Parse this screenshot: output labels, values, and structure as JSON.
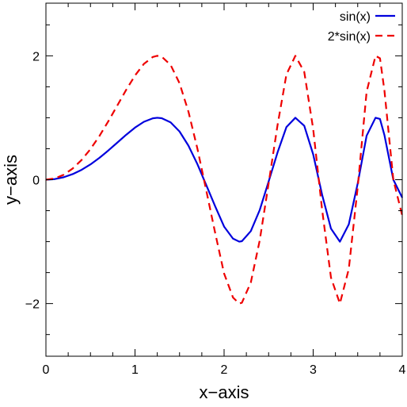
{
  "chart_data": {
    "type": "line",
    "xlabel": "x−axis",
    "ylabel": "y−axis",
    "xlim": [
      0,
      4
    ],
    "ylim": [
      -2.85,
      2.85
    ],
    "x_ticks": [
      0,
      1,
      2,
      3,
      4
    ],
    "x_tick_labels": [
      "0",
      "1",
      "2",
      "3",
      "4"
    ],
    "x_minor_step": 0.25,
    "y_ticks": [
      -2,
      0,
      2
    ],
    "y_tick_labels": [
      "−2",
      "0",
      "2"
    ],
    "y_minor_step": 0.5,
    "grid": false,
    "legend_position": "top-right",
    "series": [
      {
        "name": "sin(x)",
        "color": "#0000dd",
        "dash": "solid",
        "points_x": [
          0,
          0.1,
          0.2,
          0.3,
          0.4,
          0.5,
          0.6,
          0.7,
          0.8,
          0.9,
          1.0,
          1.1,
          1.2,
          1.25,
          1.3,
          1.4,
          1.5,
          1.6,
          1.7,
          1.8,
          1.9,
          2.0,
          2.1,
          2.17,
          2.2,
          2.3,
          2.4,
          2.5,
          2.6,
          2.7,
          2.8,
          2.9,
          3.0,
          3.1,
          3.2,
          3.3,
          3.4,
          3.5,
          3.6,
          3.7,
          3.75,
          3.8,
          3.9,
          4.0
        ],
        "points_y": [
          0,
          0.01,
          0.04,
          0.09,
          0.159,
          0.247,
          0.352,
          0.471,
          0.597,
          0.724,
          0.841,
          0.935,
          0.991,
          1.0,
          0.993,
          0.926,
          0.778,
          0.549,
          0.252,
          -0.087,
          -0.43,
          -0.757,
          -0.951,
          -1.0,
          -0.993,
          -0.83,
          -0.49,
          -0.03,
          0.44,
          0.85,
          1.0,
          0.87,
          0.41,
          -0.24,
          -0.79,
          -1.0,
          -0.72,
          -0.06,
          0.71,
          1.0,
          0.98,
          0.72,
          0.0,
          -0.29
        ]
      },
      {
        "name": "2*sin(x)",
        "color": "#ee0000",
        "dash": "dashed",
        "points_x": [
          0,
          0.1,
          0.2,
          0.3,
          0.4,
          0.5,
          0.6,
          0.7,
          0.8,
          0.9,
          1.0,
          1.1,
          1.2,
          1.25,
          1.3,
          1.4,
          1.5,
          1.6,
          1.7,
          1.8,
          1.9,
          2.0,
          2.1,
          2.17,
          2.2,
          2.3,
          2.4,
          2.5,
          2.6,
          2.7,
          2.8,
          2.9,
          3.0,
          3.1,
          3.2,
          3.3,
          3.4,
          3.5,
          3.6,
          3.7,
          3.75,
          3.8,
          3.9,
          4.0
        ],
        "points_y": [
          0,
          0.02,
          0.08,
          0.18,
          0.318,
          0.494,
          0.704,
          0.942,
          1.194,
          1.448,
          1.682,
          1.87,
          1.982,
          2.0,
          1.986,
          1.852,
          1.556,
          1.098,
          0.504,
          -0.174,
          -0.86,
          -1.514,
          -1.902,
          -2.0,
          -1.986,
          -1.66,
          -0.98,
          -0.06,
          0.88,
          1.7,
          2.0,
          1.74,
          0.82,
          -0.48,
          -1.58,
          -2.0,
          -1.44,
          -0.12,
          1.42,
          2.0,
          1.96,
          1.44,
          0.0,
          -0.58
        ]
      }
    ]
  }
}
